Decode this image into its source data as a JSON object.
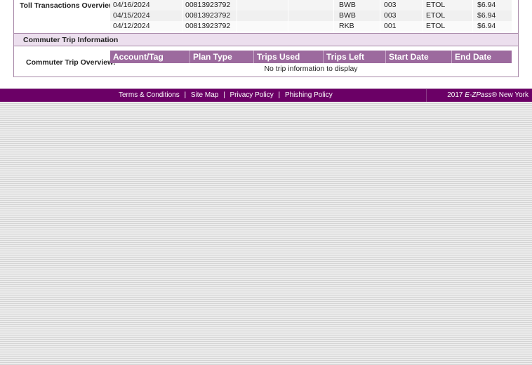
{
  "toll_transactions": {
    "label": "Toll Transactions Overview:",
    "rows": [
      {
        "date": "04/16/2024",
        "account": "00813923792",
        "plaza": "BWB",
        "lane": "003",
        "type": "ETOL",
        "amount": "$6.94"
      },
      {
        "date": "04/15/2024",
        "account": "00813923792",
        "plaza": "BWB",
        "lane": "003",
        "type": "ETOL",
        "amount": "$6.94"
      },
      {
        "date": "04/12/2024",
        "account": "00813923792",
        "plaza": "RKB",
        "lane": "001",
        "type": "ETOL",
        "amount": "$6.94"
      }
    ]
  },
  "commuter": {
    "section_title": "Commuter Trip Information",
    "label": "Commuter Trip Overview:",
    "headers": [
      "Account/Tag",
      "Plan Type",
      "Trips Used",
      "Trips Left",
      "Start Date",
      "End Date"
    ],
    "empty_message": "No trip information to display"
  },
  "footer": {
    "links": [
      "Terms & Conditions",
      "Site Map",
      "Privacy Policy",
      "Phishing Policy"
    ],
    "separator": "|",
    "copyright_year": "2017",
    "brand": "E-ZPass",
    "copyright_suffix": "® New York"
  },
  "colors": {
    "footer": "#6b0066",
    "header": "#9c6a9e",
    "band": "#ecdfee"
  }
}
